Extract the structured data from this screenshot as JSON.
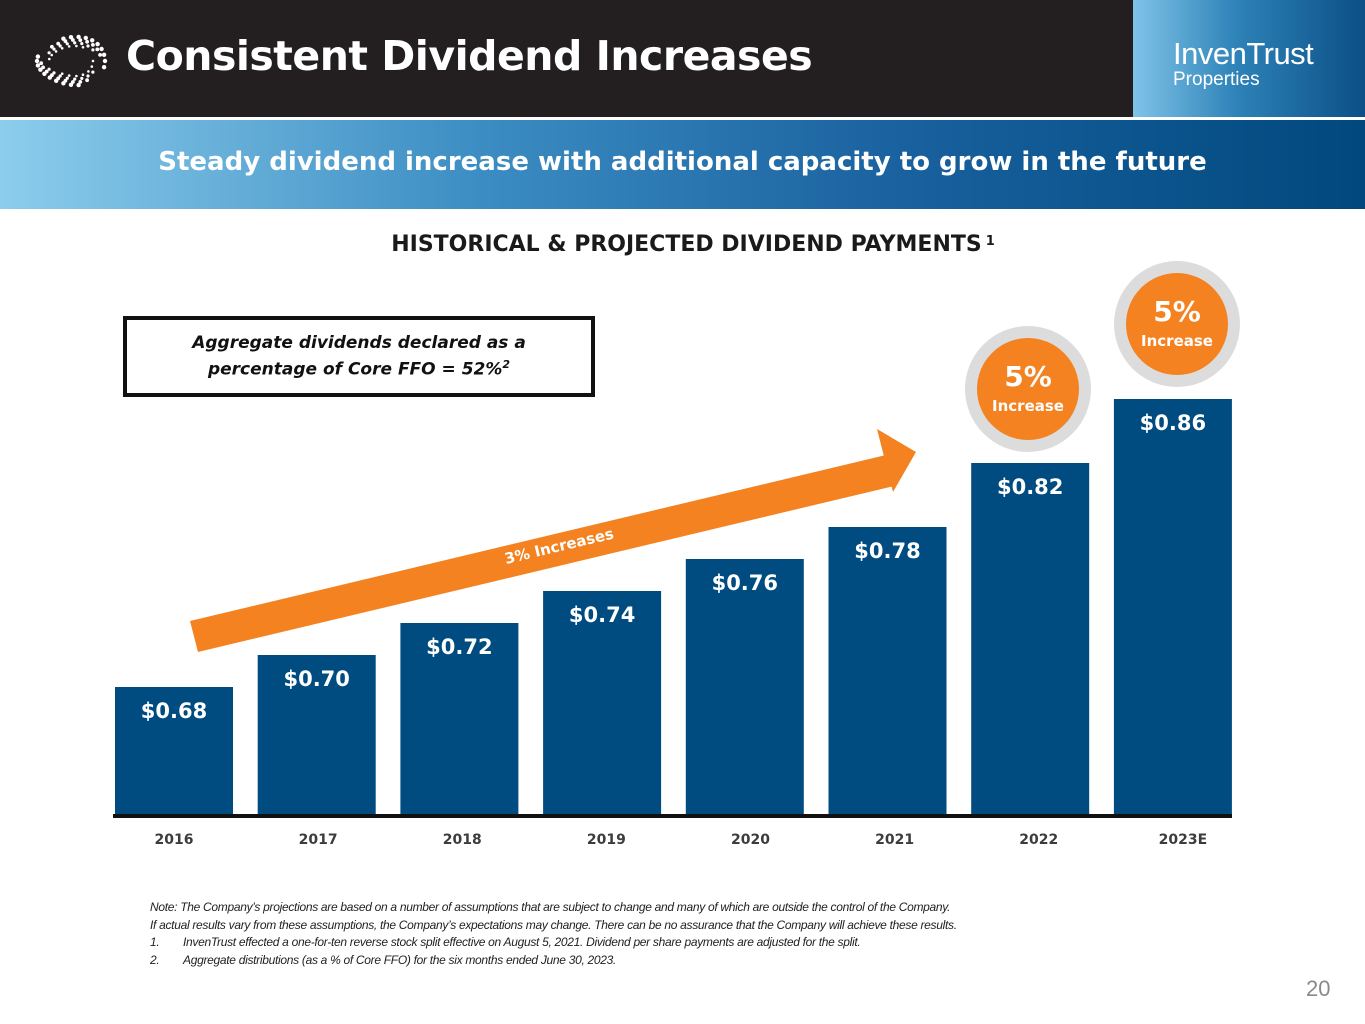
{
  "header": {
    "title": "Consistent Dividend Increases",
    "brand_name": "InvenTrust",
    "brand_sub": "Properties",
    "logo_icon": "globe-dots-icon"
  },
  "banner": {
    "text": "Steady dividend increase with additional capacity to grow in the future"
  },
  "callout": {
    "line1": "Aggregate dividends declared as a",
    "line2": "percentage of Core FFO = 52%",
    "sup": "2"
  },
  "arrow_label": "3% Increases",
  "badges": [
    {
      "pct": "5%",
      "label": "Increase"
    },
    {
      "pct": "5%",
      "label": "Increase"
    }
  ],
  "notes": {
    "line1": "Note: The Company’s projections are based on a number of assumptions that are subject to change and many of which are outside the control of the Company.",
    "line2": "If actual results vary from these assumptions, the Company’s expectations may change. There can be no assurance that the Company will achieve these results.",
    "items": [
      {
        "num": "1.",
        "text": "InvenTrust effected a one-for-ten reverse stock split effective on August 5, 2021. Dividend per share payments are adjusted for the split."
      },
      {
        "num": "2.",
        "text": "Aggregate distributions (as a % of Core FFO) for the six months ended June 30, 2023."
      }
    ]
  },
  "page_number": "20",
  "colors": {
    "bar": "#004b80",
    "accent_orange": "#f58220",
    "header_bg": "#231f20",
    "badge_ring": "#dcdcdc"
  },
  "chart_data": {
    "type": "bar",
    "title": "HISTORICAL & PROJECTED DIVIDEND PAYMENTS",
    "title_sup": "1",
    "categories": [
      "2016",
      "2017",
      "2018",
      "2019",
      "2020",
      "2021",
      "2022",
      "2023E"
    ],
    "values": [
      0.68,
      0.7,
      0.72,
      0.74,
      0.76,
      0.78,
      0.82,
      0.86
    ],
    "value_labels": [
      "$0.68",
      "$0.70",
      "$0.72",
      "$0.74",
      "$0.76",
      "$0.78",
      "$0.82",
      "$0.86"
    ],
    "xlabel": "",
    "ylabel": "",
    "grid": false,
    "legend": "none",
    "annotations": [
      {
        "text": "3% Increases",
        "type": "arrow",
        "spans": [
          "2016",
          "2021"
        ]
      },
      {
        "text": "5% Increase",
        "type": "badge",
        "category": "2022"
      },
      {
        "text": "5% Increase",
        "type": "badge",
        "category": "2023E"
      }
    ]
  }
}
